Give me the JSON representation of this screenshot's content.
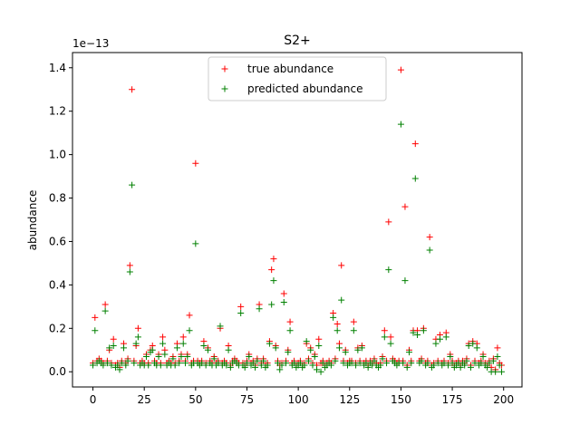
{
  "chart_data": {
    "type": "scatter",
    "title": "S2+",
    "xlabel": "",
    "ylabel": "abundance",
    "y_offset_label": "1e−13",
    "xlim": [
      -9.95,
      208.95
    ],
    "ylim": [
      -0.07,
      1.47
    ],
    "x_ticks": [
      0,
      25,
      50,
      75,
      100,
      125,
      150,
      175,
      200
    ],
    "y_ticks": [
      0.0,
      0.2,
      0.4,
      0.6,
      0.8,
      1.0,
      1.2,
      1.4
    ],
    "x_tick_labels": [
      "0",
      "25",
      "50",
      "75",
      "100",
      "125",
      "150",
      "175",
      "200"
    ],
    "y_tick_labels": [
      "0.0",
      "0.2",
      "0.4",
      "0.6",
      "0.8",
      "1.0",
      "1.2",
      "1.4"
    ],
    "grid": false,
    "legend_position": "upper-center",
    "series": [
      {
        "name": "true abundance",
        "color": "#ff0000",
        "marker": "plus",
        "x": [
          0,
          1,
          2,
          3,
          4,
          5,
          6,
          7,
          8,
          9,
          10,
          11,
          12,
          13,
          14,
          15,
          16,
          17,
          18,
          19,
          20,
          21,
          22,
          23,
          24,
          25,
          26,
          27,
          28,
          29,
          30,
          31,
          32,
          33,
          34,
          35,
          36,
          37,
          38,
          39,
          40,
          41,
          42,
          43,
          44,
          45,
          46,
          47,
          48,
          49,
          50,
          51,
          52,
          53,
          54,
          55,
          56,
          57,
          58,
          59,
          60,
          61,
          62,
          63,
          64,
          65,
          66,
          67,
          68,
          69,
          70,
          71,
          72,
          73,
          74,
          75,
          76,
          77,
          78,
          79,
          80,
          81,
          82,
          83,
          84,
          85,
          86,
          87,
          88,
          89,
          90,
          91,
          92,
          93,
          94,
          95,
          96,
          97,
          98,
          99,
          100,
          101,
          102,
          103,
          104,
          105,
          106,
          107,
          108,
          109,
          110,
          111,
          112,
          113,
          114,
          115,
          116,
          117,
          118,
          119,
          120,
          121,
          122,
          123,
          124,
          125,
          126,
          127,
          128,
          129,
          130,
          131,
          132,
          133,
          134,
          135,
          136,
          137,
          138,
          139,
          140,
          141,
          142,
          143,
          144,
          145,
          146,
          147,
          148,
          149,
          150,
          151,
          152,
          153,
          154,
          155,
          156,
          157,
          158,
          159,
          160,
          161,
          162,
          163,
          164,
          165,
          166,
          167,
          168,
          169,
          170,
          171,
          172,
          173,
          174,
          175,
          176,
          177,
          178,
          179,
          180,
          181,
          182,
          183,
          184,
          185,
          186,
          187,
          188,
          189,
          190,
          191,
          192,
          193,
          194,
          195,
          196,
          197,
          198,
          199
        ],
        "y": [
          0.04,
          0.25,
          0.05,
          0.06,
          0.05,
          0.04,
          0.31,
          0.05,
          0.1,
          0.04,
          0.15,
          0.03,
          0.04,
          0.02,
          0.05,
          0.13,
          0.04,
          0.06,
          0.49,
          1.3,
          0.05,
          0.12,
          0.2,
          0.04,
          0.05,
          0.04,
          0.08,
          0.04,
          0.1,
          0.12,
          0.05,
          0.04,
          0.08,
          0.04,
          0.16,
          0.1,
          0.04,
          0.05,
          0.04,
          0.07,
          0.04,
          0.13,
          0.05,
          0.08,
          0.16,
          0.05,
          0.08,
          0.26,
          0.04,
          0.05,
          0.96,
          0.05,
          0.04,
          0.05,
          0.14,
          0.04,
          0.11,
          0.05,
          0.04,
          0.07,
          0.04,
          0.05,
          0.2,
          0.04,
          0.05,
          0.04,
          0.12,
          0.03,
          0.05,
          0.06,
          0.05,
          0.04,
          0.3,
          0.04,
          0.03,
          0.05,
          0.08,
          0.04,
          0.05,
          0.03,
          0.06,
          0.31,
          0.04,
          0.06,
          0.03,
          0.04,
          0.14,
          0.47,
          0.52,
          0.12,
          0.05,
          0.03,
          0.04,
          0.36,
          0.05,
          0.1,
          0.23,
          0.04,
          0.05,
          0.03,
          0.04,
          0.05,
          0.03,
          0.04,
          0.13,
          0.06,
          0.11,
          0.04,
          0.08,
          0.03,
          0.15,
          0.04,
          0.05,
          0.03,
          0.04,
          0.05,
          0.04,
          0.27,
          0.06,
          0.22,
          0.13,
          0.49,
          0.05,
          0.1,
          0.04,
          0.05,
          0.05,
          0.23,
          0.04,
          0.11,
          0.05,
          0.12,
          0.04,
          0.05,
          0.03,
          0.05,
          0.04,
          0.06,
          0.04,
          0.03,
          0.04,
          0.07,
          0.19,
          0.05,
          0.69,
          0.16,
          0.06,
          0.05,
          0.04,
          0.05,
          1.39,
          0.05,
          0.76,
          0.03,
          0.1,
          0.05,
          0.19,
          1.05,
          0.19,
          0.05,
          0.06,
          0.2,
          0.04,
          0.05,
          0.62,
          0.03,
          0.04,
          0.15,
          0.05,
          0.17,
          0.04,
          0.05,
          0.18,
          0.04,
          0.08,
          0.05,
          0.03,
          0.04,
          0.05,
          0.03,
          0.05,
          0.04,
          0.06,
          0.13,
          0.03,
          0.14,
          0.05,
          0.13,
          0.04,
          0.05,
          0.08,
          0.04,
          0.03,
          0.05,
          0.02,
          0.06,
          0.01,
          0.11,
          0.04,
          0.03
        ]
      },
      {
        "name": "predicted abundance",
        "color": "#008000",
        "marker": "plus",
        "x": [
          0,
          1,
          2,
          3,
          4,
          5,
          6,
          7,
          8,
          9,
          10,
          11,
          12,
          13,
          14,
          15,
          16,
          17,
          18,
          19,
          20,
          21,
          22,
          23,
          24,
          25,
          26,
          27,
          28,
          29,
          30,
          31,
          32,
          33,
          34,
          35,
          36,
          37,
          38,
          39,
          40,
          41,
          42,
          43,
          44,
          45,
          46,
          47,
          48,
          49,
          50,
          51,
          52,
          53,
          54,
          55,
          56,
          57,
          58,
          59,
          60,
          61,
          62,
          63,
          64,
          65,
          66,
          67,
          68,
          69,
          70,
          71,
          72,
          73,
          74,
          75,
          76,
          77,
          78,
          79,
          80,
          81,
          82,
          83,
          84,
          85,
          86,
          87,
          88,
          89,
          90,
          91,
          92,
          93,
          94,
          95,
          96,
          97,
          98,
          99,
          100,
          101,
          102,
          103,
          104,
          105,
          106,
          107,
          108,
          109,
          110,
          111,
          112,
          113,
          114,
          115,
          116,
          117,
          118,
          119,
          120,
          121,
          122,
          123,
          124,
          125,
          126,
          127,
          128,
          129,
          130,
          131,
          132,
          133,
          134,
          135,
          136,
          137,
          138,
          139,
          140,
          141,
          142,
          143,
          144,
          145,
          146,
          147,
          148,
          149,
          150,
          151,
          152,
          153,
          154,
          155,
          156,
          157,
          158,
          159,
          160,
          161,
          162,
          163,
          164,
          165,
          166,
          167,
          168,
          169,
          170,
          171,
          172,
          173,
          174,
          175,
          176,
          177,
          178,
          179,
          180,
          181,
          182,
          183,
          184,
          185,
          186,
          187,
          188,
          189,
          190,
          191,
          192,
          193,
          194,
          195,
          196,
          197,
          198,
          199
        ],
        "y": [
          0.03,
          0.19,
          0.04,
          0.05,
          0.04,
          0.03,
          0.28,
          0.04,
          0.11,
          0.03,
          0.12,
          0.02,
          0.03,
          0.01,
          0.04,
          0.11,
          0.03,
          0.05,
          0.46,
          0.86,
          0.04,
          0.13,
          0.16,
          0.03,
          0.04,
          0.03,
          0.07,
          0.03,
          0.09,
          0.1,
          0.04,
          0.03,
          0.07,
          0.03,
          0.13,
          0.08,
          0.03,
          0.04,
          0.03,
          0.06,
          0.03,
          0.11,
          0.04,
          0.07,
          0.13,
          0.04,
          0.07,
          0.19,
          0.03,
          0.04,
          0.59,
          0.04,
          0.03,
          0.04,
          0.12,
          0.03,
          0.1,
          0.04,
          0.03,
          0.06,
          0.03,
          0.04,
          0.21,
          0.03,
          0.04,
          0.03,
          0.1,
          0.02,
          0.04,
          0.05,
          0.04,
          0.03,
          0.27,
          0.03,
          0.02,
          0.04,
          0.07,
          0.03,
          0.04,
          0.02,
          0.05,
          0.29,
          0.03,
          0.05,
          0.02,
          0.03,
          0.13,
          0.31,
          0.42,
          0.11,
          0.04,
          0.01,
          0.03,
          0.32,
          0.04,
          0.09,
          0.19,
          0.03,
          0.04,
          0.02,
          0.03,
          0.04,
          0.02,
          0.03,
          0.14,
          0.05,
          0.1,
          0.03,
          0.07,
          0.01,
          0.12,
          0.0,
          0.04,
          0.02,
          0.03,
          0.04,
          0.03,
          0.25,
          0.05,
          0.19,
          0.11,
          0.33,
          0.04,
          0.09,
          0.03,
          0.04,
          0.04,
          0.19,
          0.03,
          0.1,
          0.04,
          0.11,
          0.03,
          0.04,
          0.02,
          0.04,
          0.03,
          0.05,
          0.03,
          0.02,
          0.03,
          0.06,
          0.16,
          0.04,
          0.47,
          0.13,
          0.05,
          0.04,
          0.03,
          0.04,
          1.14,
          0.04,
          0.42,
          0.02,
          0.09,
          0.04,
          0.18,
          0.89,
          0.17,
          0.04,
          0.05,
          0.19,
          0.03,
          0.04,
          0.56,
          0.02,
          0.03,
          0.13,
          0.04,
          0.15,
          0.03,
          0.04,
          0.16,
          0.03,
          0.07,
          0.04,
          0.02,
          0.03,
          0.04,
          0.02,
          0.04,
          0.03,
          0.05,
          0.12,
          0.02,
          0.13,
          0.04,
          0.11,
          0.03,
          0.04,
          0.07,
          0.03,
          0.02,
          0.04,
          0.0,
          0.05,
          0.0,
          0.07,
          0.03,
          0.0
        ]
      }
    ]
  }
}
